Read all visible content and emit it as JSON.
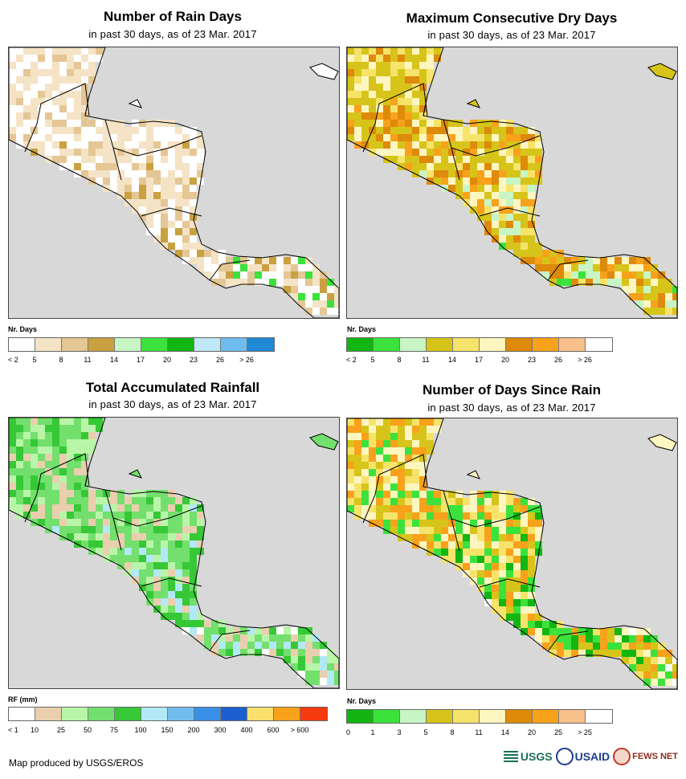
{
  "panels": {
    "rain_days": {
      "title": "Number of Rain Days",
      "subtitle": "in past 30 days, as of 23 Mar. 2017",
      "legend_title": "Nr. Days",
      "legend_colors": [
        "#ffffff",
        "#f5e3c6",
        "#e4c795",
        "#c9a141",
        "#c8f5c4",
        "#3ce23c",
        "#12b512",
        "#bfe9f9",
        "#6fbcf0",
        "#1f89d6"
      ],
      "legend_labels": [
        "< 2",
        "5",
        "8",
        "11",
        "14",
        "17",
        "20",
        "23",
        "26",
        "> 26"
      ],
      "palette": [
        "#ffffff",
        "#ffffff",
        "#f5e3c6",
        "#f5e3c6",
        "#e4c795",
        "#c9a141",
        "#3ce23c"
      ]
    },
    "dry_days": {
      "title": "Maximum Consecutive Dry Days",
      "subtitle": "in past 30 days, as of 23 Mar. 2017",
      "legend_title": "Nr. Days",
      "legend_colors": [
        "#12b512",
        "#3ce23c",
        "#c8f5c4",
        "#d7c41a",
        "#f6e36a",
        "#fdf6c0",
        "#de8a0a",
        "#f8a21b",
        "#f8c08a",
        "#ffffff"
      ],
      "legend_labels": [
        "< 2",
        "5",
        "8",
        "11",
        "14",
        "17",
        "20",
        "23",
        "26",
        "> 26"
      ],
      "palette": [
        "#de8a0a",
        "#d7c41a",
        "#d7c41a",
        "#f6e36a",
        "#fdf6c0",
        "#f8a21b",
        "#c8f5c4",
        "#3ce23c"
      ]
    },
    "rainfall": {
      "title": "Total Accumulated Rainfall",
      "subtitle": "in past 30 days, as of 23 Mar. 2017",
      "legend_title": "RF (mm)",
      "legend_colors": [
        "#ffffff",
        "#eacfae",
        "#b9f5a9",
        "#73df6d",
        "#36c836",
        "#b3e8f5",
        "#73bdee",
        "#3a8fe6",
        "#1d5fd1",
        "#fbe06d",
        "#f8a21b",
        "#f63a10"
      ],
      "legend_labels": [
        "< 1",
        "10",
        "25",
        "50",
        "75",
        "100",
        "150",
        "200",
        "300",
        "400",
        "600",
        "> 600"
      ],
      "palette": [
        "#73df6d",
        "#73df6d",
        "#b9f5a9",
        "#36c836",
        "#eacfae",
        "#b3e8f5",
        "#ffffff"
      ]
    },
    "days_since_rain": {
      "title": "Number of Days Since Rain",
      "subtitle": "in past 30 days, as of 23 Mar. 2017",
      "legend_title": "Nr. Days",
      "legend_colors": [
        "#12b512",
        "#3ce23c",
        "#c8f5c4",
        "#d7c41a",
        "#f6e36a",
        "#fdf6c0",
        "#de8a0a",
        "#f8a21b",
        "#f8c08a",
        "#ffffff"
      ],
      "legend_labels": [
        "0",
        "1",
        "3",
        "5",
        "8",
        "11",
        "14",
        "20",
        "25",
        "> 25"
      ],
      "palette": [
        "#f6e36a",
        "#fdf6c0",
        "#d7c41a",
        "#f8a21b",
        "#3ce23c",
        "#12b512",
        "#ffffff"
      ]
    }
  },
  "footer": {
    "credit": "Map produced by USGS/EROS",
    "logo_usgs": "USGS",
    "logo_usaid": "USAID",
    "logo_fews": "FEWS NET"
  }
}
